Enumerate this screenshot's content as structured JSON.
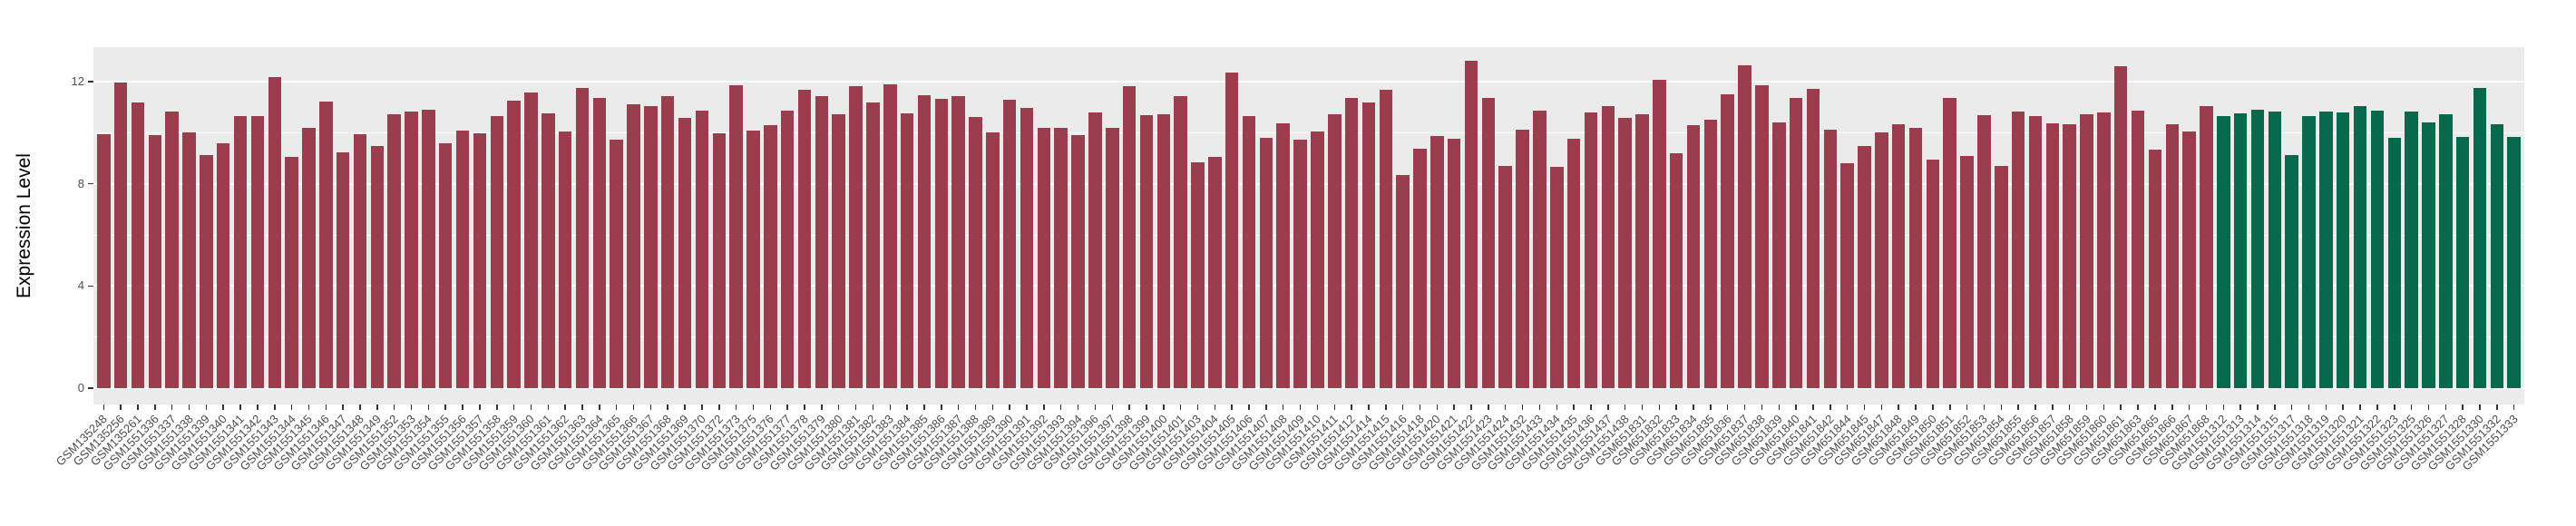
{
  "chart_data": {
    "type": "bar",
    "title": "",
    "xlabel": "",
    "ylabel": "Expression Level",
    "ylim": [
      0,
      13.35
    ],
    "yticks": [
      0,
      4,
      8,
      12
    ],
    "yticks_minor": [
      2,
      6,
      10
    ],
    "grid": "white major+minor horizontal gridlines on grey panel",
    "legend": "none",
    "panel_background": "#EBEBEB",
    "gridline_color": "#FFFFFF",
    "axis_text_color": "#4D4D4D",
    "tick_mark_color": "#333333",
    "series": [
      {
        "name": "red-bars",
        "color": "#9B3D4D",
        "start": 0,
        "count": 124
      },
      {
        "name": "green-bars",
        "color": "#056A4C",
        "start": 124,
        "count": 18
      }
    ],
    "categories": [
      "GSM135248",
      "GSM135256",
      "GSM135261",
      "GSM1551336",
      "GSM1551337",
      "GSM1551338",
      "GSM1551339",
      "GSM1551340",
      "GSM1551341",
      "GSM1551342",
      "GSM1551343",
      "GSM1551344",
      "GSM1551345",
      "GSM1551346",
      "GSM1551347",
      "GSM1551348",
      "GSM1551349",
      "GSM1551352",
      "GSM1551353",
      "GSM1551354",
      "GSM1551355",
      "GSM1551356",
      "GSM1551357",
      "GSM1551358",
      "GSM1551359",
      "GSM1551360",
      "GSM1551361",
      "GSM1551362",
      "GSM1551363",
      "GSM1551364",
      "GSM1551365",
      "GSM1551366",
      "GSM1551367",
      "GSM1551368",
      "GSM1551369",
      "GSM1551370",
      "GSM1551372",
      "GSM1551373",
      "GSM1551375",
      "GSM1551376",
      "GSM1551377",
      "GSM1551378",
      "GSM1551379",
      "GSM1551380",
      "GSM1551381",
      "GSM1551382",
      "GSM1551383",
      "GSM1551384",
      "GSM1551385",
      "GSM1551386",
      "GSM1551387",
      "GSM1551388",
      "GSM1551389",
      "GSM1551390",
      "GSM1551391",
      "GSM1551392",
      "GSM1551393",
      "GSM1551394",
      "GSM1551396",
      "GSM1551397",
      "GSM1551398",
      "GSM1551399",
      "GSM1551400",
      "GSM1551401",
      "GSM1551403",
      "GSM1551404",
      "GSM1551405",
      "GSM1551406",
      "GSM1551407",
      "GSM1551408",
      "GSM1551409",
      "GSM1551410",
      "GSM1551411",
      "GSM1551412",
      "GSM1551414",
      "GSM1551415",
      "GSM1551416",
      "GSM1551418",
      "GSM1551420",
      "GSM1551421",
      "GSM1551422",
      "GSM1551423",
      "GSM1551424",
      "GSM1551432",
      "GSM1551433",
      "GSM1551434",
      "GSM1551435",
      "GSM1551436",
      "GSM1551437",
      "GSM1551438",
      "GSM651831",
      "GSM651832",
      "GSM651833",
      "GSM651834",
      "GSM651835",
      "GSM651836",
      "GSM651837",
      "GSM651838",
      "GSM651839",
      "GSM651840",
      "GSM651841",
      "GSM651842",
      "GSM651844",
      "GSM651845",
      "GSM651847",
      "GSM651848",
      "GSM651849",
      "GSM651850",
      "GSM651851",
      "GSM651852",
      "GSM651853",
      "GSM651854",
      "GSM651855",
      "GSM651856",
      "GSM651857",
      "GSM651858",
      "GSM651859",
      "GSM651860",
      "GSM651861",
      "GSM651863",
      "GSM651865",
      "GSM651866",
      "GSM651867",
      "GSM651868",
      "GSM1551312",
      "GSM1551313",
      "GSM1551314",
      "GSM1551315",
      "GSM1551317",
      "GSM1551318",
      "GSM1551319",
      "GSM1551320",
      "GSM1551321",
      "GSM1551322",
      "GSM1551323",
      "GSM1551325",
      "GSM1551326",
      "GSM1551327",
      "GSM1551328",
      "GSM1551330",
      "GSM1551332",
      "GSM1551333"
    ],
    "values": [
      9.93,
      11.97,
      11.17,
      9.9,
      10.84,
      10.02,
      9.12,
      9.59,
      10.66,
      10.64,
      12.18,
      9.04,
      10.2,
      11.23,
      9.22,
      9.93,
      9.48,
      10.72,
      10.82,
      10.91,
      9.57,
      10.08,
      9.99,
      10.66,
      11.25,
      11.58,
      10.76,
      10.05,
      11.76,
      11.37,
      9.72,
      11.11,
      11.03,
      11.44,
      10.58,
      10.88,
      9.99,
      11.85,
      10.07,
      10.31,
      10.88,
      11.67,
      11.43,
      10.73,
      11.82,
      11.19,
      11.9,
      10.76,
      11.47,
      11.32,
      11.44,
      10.61,
      10.02,
      11.29,
      10.96,
      10.2,
      10.19,
      9.89,
      10.78,
      10.2,
      11.82,
      10.7,
      10.72,
      11.44,
      8.83,
      9.04,
      12.35,
      10.64,
      9.81,
      10.37,
      9.73,
      10.05,
      10.72,
      11.38,
      11.17,
      11.68,
      8.35,
      9.37,
      9.87,
      9.77,
      12.83,
      11.35,
      8.71,
      10.13,
      10.88,
      8.65,
      9.75,
      10.79,
      11.05,
      10.58,
      10.73,
      12.09,
      9.19,
      10.28,
      10.51,
      11.5,
      12.65,
      11.85,
      10.4,
      11.38,
      11.73,
      10.13,
      8.8,
      9.49,
      10.01,
      10.34,
      10.18,
      8.96,
      11.36,
      9.1,
      10.7,
      8.71,
      10.84,
      10.66,
      10.37,
      10.34,
      10.72,
      10.78,
      12.61,
      10.88,
      9.34,
      10.32,
      10.05,
      11.05,
      10.66,
      10.76,
      10.91,
      10.84,
      9.12,
      10.64,
      10.84,
      10.78,
      11.03,
      10.88,
      9.79,
      10.82,
      10.4,
      10.72,
      9.84,
      11.76,
      10.34,
      9.83
    ]
  }
}
